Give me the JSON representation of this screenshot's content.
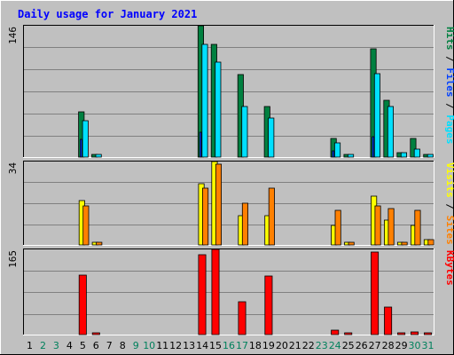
{
  "chart_data": {
    "title": "Daily usage for January 2021",
    "type": "bar",
    "categories": [
      "1",
      "2",
      "3",
      "4",
      "5",
      "6",
      "7",
      "8",
      "9",
      "10",
      "11",
      "12",
      "13",
      "14",
      "15",
      "16",
      "17",
      "18",
      "19",
      "20",
      "21",
      "22",
      "23",
      "24",
      "25",
      "26",
      "27",
      "28",
      "29",
      "30",
      "31"
    ],
    "weekend_days": [
      "2",
      "3",
      "9",
      "10",
      "16",
      "17",
      "23",
      "24",
      "30",
      "31"
    ],
    "panels": [
      {
        "id": "hits",
        "peak_label": "146",
        "ylim": [
          0,
          146
        ],
        "legend": [
          {
            "text": "Hits",
            "color": "#008040"
          },
          {
            "text": " / ",
            "color": "#000000"
          },
          {
            "text": "Files",
            "color": "#0040ff"
          },
          {
            "text": " / ",
            "color": "#000000"
          },
          {
            "text": "Pages",
            "color": "#00e0ff"
          }
        ],
        "series": [
          {
            "name": "Hits",
            "color": "#008040",
            "values": [
              0,
              0,
              0,
              0,
              50,
              3,
              0,
              0,
              0,
              0,
              0,
              0,
              0,
              146,
              125,
              0,
              92,
              0,
              56,
              0,
              0,
              0,
              0,
              21,
              3,
              0,
              120,
              63,
              5,
              21,
              3
            ]
          },
          {
            "name": "Files",
            "color": "#0040ff",
            "values": [
              0,
              0,
              0,
              0,
              20,
              0,
              0,
              0,
              0,
              0,
              0,
              0,
              0,
              28,
              0,
              0,
              0,
              0,
              0,
              0,
              0,
              0,
              0,
              7,
              0,
              0,
              23,
              0,
              0,
              0,
              0
            ]
          },
          {
            "name": "Pages",
            "color": "#00e0ff",
            "values": [
              0,
              0,
              0,
              0,
              40,
              3,
              0,
              0,
              0,
              0,
              0,
              0,
              0,
              125,
              106,
              0,
              56,
              0,
              43,
              0,
              0,
              0,
              0,
              16,
              3,
              0,
              93,
              56,
              5,
              9,
              3
            ]
          }
        ]
      },
      {
        "id": "visits",
        "peak_label": "34",
        "ylim": [
          0,
          34
        ],
        "legend": [
          {
            "text": "Visits",
            "color": "#ffff00"
          },
          {
            "text": " / ",
            "color": "#000000"
          },
          {
            "text": "Sites",
            "color": "#ff8000"
          }
        ],
        "series": [
          {
            "name": "Visits",
            "color": "#ffff00",
            "values": [
              0,
              0,
              0,
              0,
              18,
              1,
              0,
              0,
              0,
              0,
              0,
              0,
              0,
              25,
              34,
              0,
              12,
              0,
              12,
              0,
              0,
              0,
              0,
              8,
              1,
              0,
              20,
              10,
              1,
              8,
              2
            ]
          },
          {
            "name": "Sites",
            "color": "#ff8000",
            "values": [
              0,
              0,
              0,
              0,
              16,
              1,
              0,
              0,
              0,
              0,
              0,
              0,
              0,
              23,
              33,
              0,
              17,
              0,
              23,
              0,
              0,
              0,
              0,
              14,
              1,
              0,
              16,
              15,
              1,
              14,
              2
            ]
          }
        ]
      },
      {
        "id": "kbytes",
        "peak_label": "165",
        "ylim": [
          0,
          165
        ],
        "legend": [
          {
            "text": "KBytes",
            "color": "#ff0000"
          }
        ],
        "series": [
          {
            "name": "KBytes",
            "color": "#ff0000",
            "values": [
              0,
              0,
              0,
              0,
              115,
              2,
              0,
              0,
              0,
              0,
              0,
              0,
              0,
              155,
              165,
              0,
              64,
              0,
              113,
              0,
              0,
              0,
              0,
              9,
              2,
              0,
              160,
              54,
              2,
              5,
              3
            ]
          }
        ]
      }
    ]
  },
  "colors": {
    "background": "#c0c0c0",
    "plot_background": "#c0c0c0",
    "gridline": "#808080",
    "weekday_label": "#000000",
    "weekend_label": "#00805c",
    "title": "#0000ff"
  }
}
